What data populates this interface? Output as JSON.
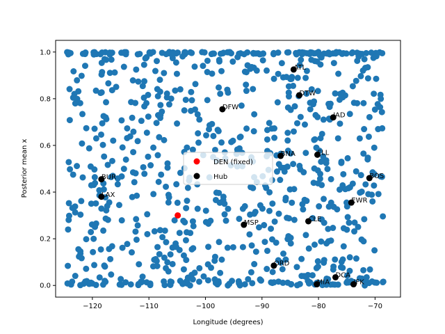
{
  "chart_data": {
    "type": "scatter",
    "xlabel": "Longitude (degrees)",
    "ylabel": "Posterior mean x",
    "xlim": [
      -126.5,
      -65.5
    ],
    "ylim": [
      -0.05,
      1.05
    ],
    "grid": false,
    "legend_position": "center",
    "x_ticks": [
      {
        "value": -120,
        "label": "−120"
      },
      {
        "value": -110,
        "label": "−110"
      },
      {
        "value": -100,
        "label": "−100"
      },
      {
        "value": -90,
        "label": "−90"
      },
      {
        "value": -80,
        "label": "−80"
      },
      {
        "value": -70,
        "label": "−70"
      }
    ],
    "y_ticks": [
      {
        "value": 0.0,
        "label": "0.0"
      },
      {
        "value": 0.2,
        "label": "0.2"
      },
      {
        "value": 0.4,
        "label": "0.4"
      },
      {
        "value": 0.6,
        "label": "0.6"
      },
      {
        "value": 0.8,
        "label": "0.8"
      },
      {
        "value": 1.0,
        "label": "1.0"
      }
    ],
    "series": [
      {
        "name": "DEN (fixed)",
        "color": "#ff0000",
        "points": [
          {
            "x": -104.9,
            "y": 0.3
          }
        ]
      },
      {
        "name": "Hub",
        "color": "#000000",
        "points": [
          {
            "label": "ATL",
            "x": -84.4,
            "y": 0.925
          },
          {
            "label": "DTW",
            "x": -83.4,
            "y": 0.815
          },
          {
            "label": "DFW",
            "x": -97.0,
            "y": 0.755
          },
          {
            "label": "JAD",
            "x": -77.4,
            "y": 0.72
          },
          {
            "label": "BNA",
            "x": -86.7,
            "y": 0.555
          },
          {
            "label": "FLL",
            "x": -80.2,
            "y": 0.56
          },
          {
            "label": "BUR",
            "x": -118.4,
            "y": 0.455
          },
          {
            "label": "BOS",
            "x": -71.0,
            "y": 0.46
          },
          {
            "label": "LAX",
            "x": -118.4,
            "y": 0.38
          },
          {
            "label": "EWR",
            "x": -74.2,
            "y": 0.355
          },
          {
            "label": "CLE",
            "x": -81.8,
            "y": 0.275
          },
          {
            "label": "MSP",
            "x": -93.2,
            "y": 0.26
          },
          {
            "label": "ORD",
            "x": -87.9,
            "y": 0.085
          },
          {
            "label": "DCA",
            "x": -77.0,
            "y": 0.035
          },
          {
            "label": "MIA",
            "x": -80.3,
            "y": 0.005
          },
          {
            "label": "JFK",
            "x": -73.8,
            "y": 0.005
          }
        ]
      }
    ],
    "background_series": {
      "color": "#1f77b4",
      "count": 850,
      "xmin": -124.5,
      "xmax": -68.5,
      "ymin": 0.0,
      "ymax": 1.0
    }
  }
}
